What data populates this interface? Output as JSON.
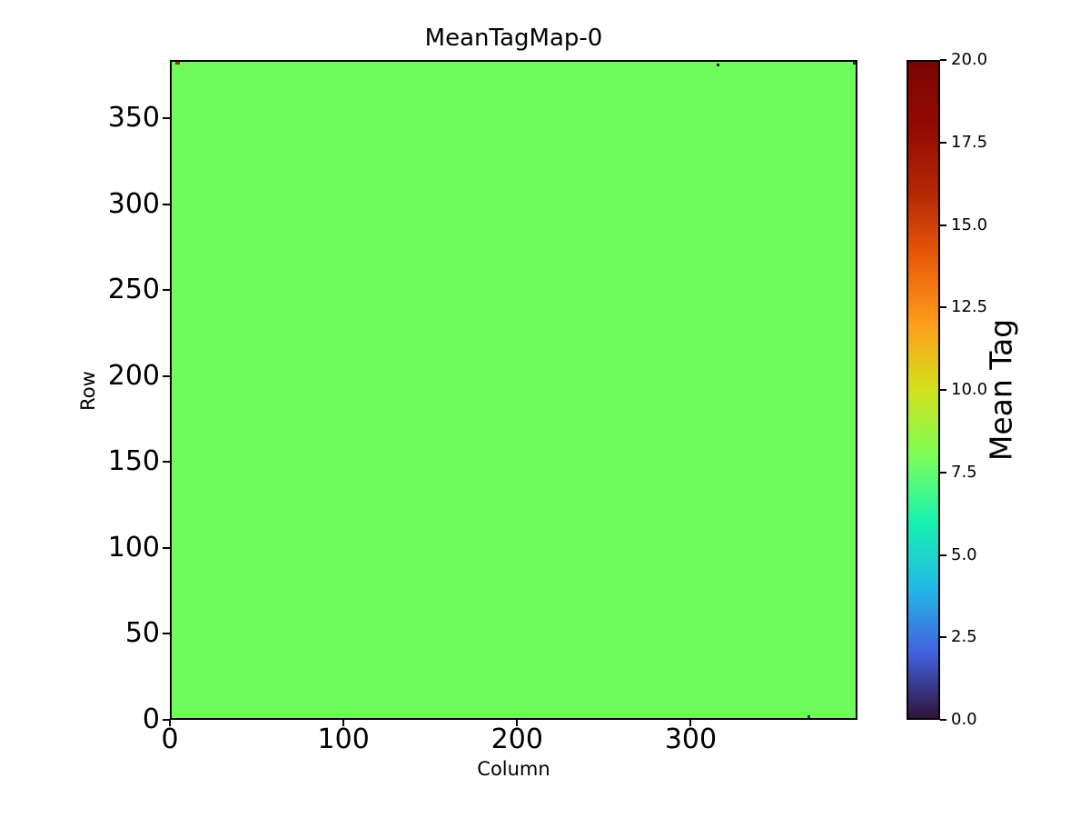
{
  "chart_data": {
    "type": "heatmap",
    "title": "MeanTagMap-0",
    "xlabel": "Column",
    "ylabel": "Row",
    "colorbar_label": "Mean Tag",
    "xlim": [
      0,
      396
    ],
    "ylim": [
      0,
      384
    ],
    "clim": [
      0.0,
      20.0
    ],
    "grid": false,
    "colormap": "turbo",
    "uniform_value": 9.5,
    "uniform_color": "#70fb5c",
    "background_color": "#ffffff",
    "axis_color": "#000000",
    "x_ticks": [
      {
        "v": 0,
        "label": "0"
      },
      {
        "v": 100,
        "label": "100"
      },
      {
        "v": 200,
        "label": "200"
      },
      {
        "v": 300,
        "label": "300"
      }
    ],
    "y_ticks": [
      {
        "v": 0,
        "label": "0"
      },
      {
        "v": 50,
        "label": "50"
      },
      {
        "v": 100,
        "label": "100"
      },
      {
        "v": 150,
        "label": "150"
      },
      {
        "v": 200,
        "label": "200"
      },
      {
        "v": 250,
        "label": "250"
      },
      {
        "v": 300,
        "label": "300"
      },
      {
        "v": 350,
        "label": "350"
      }
    ],
    "colorbar_ticks": [
      {
        "v": 0.0,
        "label": "0.0"
      },
      {
        "v": 2.5,
        "label": "2.5"
      },
      {
        "v": 5.0,
        "label": "5.0"
      },
      {
        "v": 7.5,
        "label": "7.5"
      },
      {
        "v": 10.0,
        "label": "10.0"
      },
      {
        "v": 12.5,
        "label": "12.5"
      },
      {
        "v": 15.0,
        "label": "15.0"
      },
      {
        "v": 17.5,
        "label": "17.5"
      },
      {
        "v": 20.0,
        "label": "20.0"
      }
    ],
    "colormap_stops": [
      {
        "t": 0.0,
        "c": "#30123b"
      },
      {
        "t": 0.1,
        "c": "#4262df"
      },
      {
        "t": 0.2,
        "c": "#22bae5"
      },
      {
        "t": 0.3,
        "c": "#18f2ae"
      },
      {
        "t": 0.4,
        "c": "#7dfe58"
      },
      {
        "t": 0.5,
        "c": "#d2e11b"
      },
      {
        "t": 0.6,
        "c": "#fd9e1a"
      },
      {
        "t": 0.7,
        "c": "#ea5b0a"
      },
      {
        "t": 0.8,
        "c": "#b42803"
      },
      {
        "t": 0.9,
        "c": "#930b01"
      },
      {
        "t": 1.0,
        "c": "#7a0403"
      }
    ],
    "anomalies": [
      {
        "col": 3,
        "row": 383,
        "approx_value": 16.0,
        "color": "#a02800",
        "w": 5,
        "h": 3
      },
      {
        "col": 315,
        "row": 381,
        "approx_value": 0.5,
        "color": "#1e1e28",
        "w": 3,
        "h": 3
      },
      {
        "col": 394,
        "row": 383,
        "approx_value": 1.0,
        "color": "#2f2f36",
        "w": 3,
        "h": 3
      },
      {
        "col": 367,
        "row": 2,
        "approx_value": 1.0,
        "color": "#33333a",
        "w": 3,
        "h": 3
      }
    ]
  }
}
